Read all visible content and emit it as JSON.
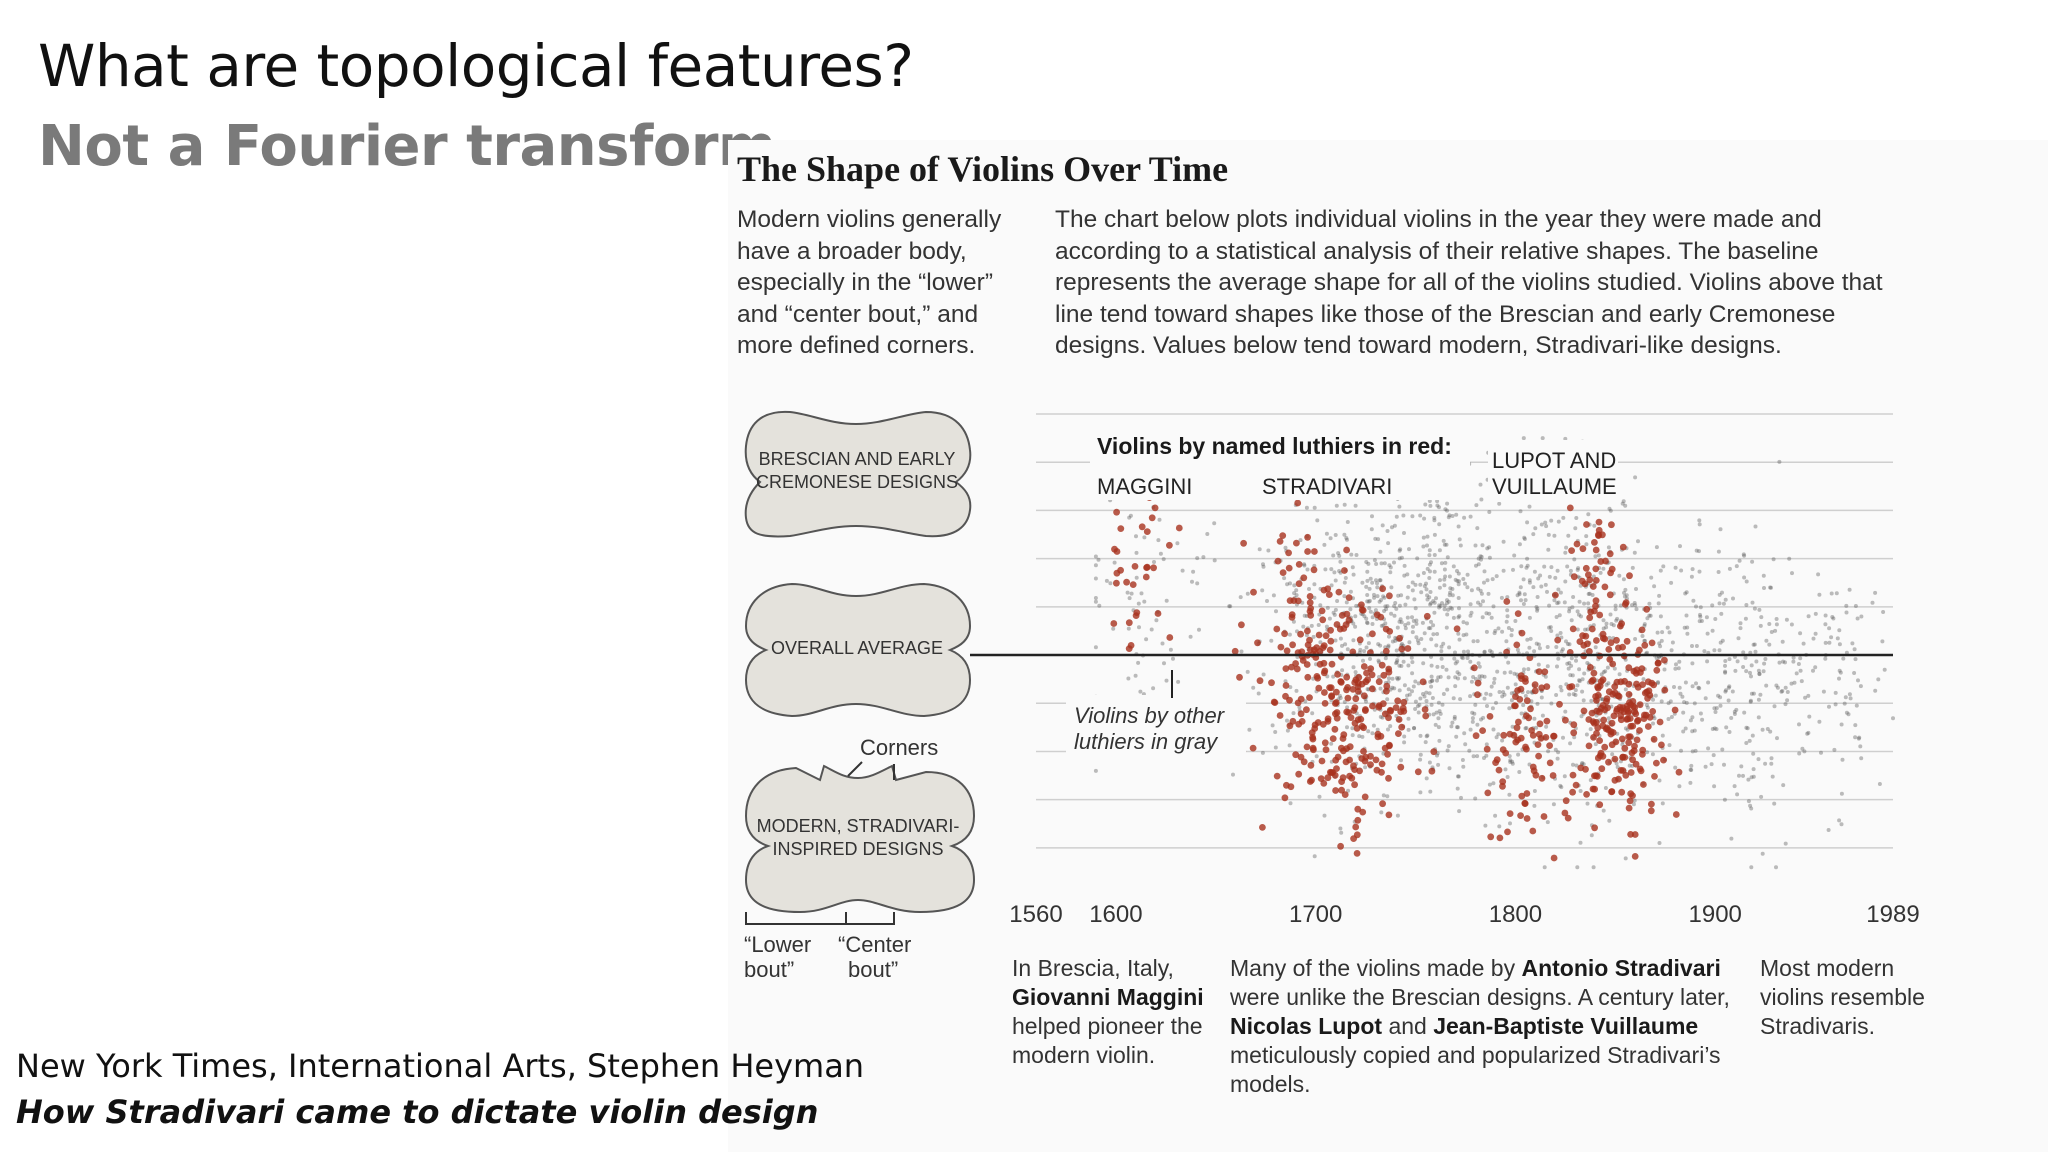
{
  "slide": {
    "title": "What are topological features?",
    "subtitle": "Not a Fourier transform"
  },
  "graphic": {
    "title": "The Shape of Violins Over Time",
    "desc_left": "Modern violins generally have a broader body, especially in the “lower” and “center bout,” and more defined corners.",
    "desc_right": "The chart below plots individual violins in the year they were made and according to a statistical analysis of their relative shapes. The baseline represents the average shape for all of the violins studied. Violins above that line tend toward shapes like those of the Brescian and early Cremonese designs. Values below tend toward modern, Stradivari-like designs.",
    "shapes": {
      "top_line1": "BRESCIAN AND EARLY",
      "top_line2": "CREMONESE DESIGNS",
      "middle": "OVERALL AVERAGE",
      "bottom_line1": "MODERN, STRADIVARI-",
      "bottom_line2": "INSPIRED DESIGNS",
      "corners": "Corners",
      "lower_bout_line1": "“Lower",
      "lower_bout_line2": "bout”",
      "center_bout_line1": "“Center",
      "center_bout_line2": "bout”"
    },
    "annotations": [
      {
        "parts": [
          {
            "t": "In Brescia, Italy, ",
            "b": false
          },
          {
            "t": "Giovanni Maggini",
            "b": true
          },
          {
            "t": " helped pioneer the modern violin.",
            "b": false
          }
        ]
      },
      {
        "parts": [
          {
            "t": "Many of the violins made by ",
            "b": false
          },
          {
            "t": "Antonio Stradivari",
            "b": true
          },
          {
            "t": " were unlike the Brescian designs. A century later, ",
            "b": false
          },
          {
            "t": "Nicolas Lupot",
            "b": true
          },
          {
            "t": " and ",
            "b": false
          },
          {
            "t": "Jean-Baptiste Vuillaume",
            "b": true
          },
          {
            "t": " meticulously copied and popularized Stradivari’s models.",
            "b": false
          }
        ]
      },
      {
        "parts": [
          {
            "t": "Most modern violins resemble Stradivaris.",
            "b": false
          }
        ]
      }
    ]
  },
  "chart_data": {
    "type": "scatter",
    "title": "",
    "xlabel": "",
    "ylabel": "",
    "x_ticks": [
      1560,
      1600,
      1700,
      1800,
      1900,
      1989
    ],
    "xlim": [
      1560,
      1989
    ],
    "ylim": [
      -4.5,
      5
    ],
    "grid": true,
    "baseline": 0,
    "legend_title": "Violins by named luthiers in red:",
    "group_labels": [
      "MAGGINI",
      "STRADIVARI",
      "LUPOT AND VUILLAUME"
    ],
    "gray_label": "Violins by other luthiers in gray",
    "colors": {
      "named": "#a8321e",
      "other": "#5a5a5a",
      "baseline": "#222222",
      "grid": "#cfcfcf"
    },
    "series": [
      {
        "name": "MAGGINI",
        "color": "#a8321e",
        "clusters": [
          {
            "x_center": 1610,
            "x_spread": 9,
            "y_center": 2.0,
            "y_spread": 1.3,
            "count": 34
          }
        ]
      },
      {
        "name": "STRADIVARI",
        "color": "#a8321e",
        "clusters": [
          {
            "x_center": 1712,
            "x_spread": 20,
            "y_center": -1.0,
            "y_spread": 1.2,
            "count": 260
          },
          {
            "x_center": 1690,
            "x_spread": 10,
            "y_center": 0.8,
            "y_spread": 0.9,
            "count": 35
          }
        ]
      },
      {
        "name": "LUPOT AND VUILLAUME",
        "color": "#a8321e",
        "clusters": [
          {
            "x_center": 1805,
            "x_spread": 14,
            "y_center": -1.6,
            "y_spread": 1.3,
            "count": 90
          },
          {
            "x_center": 1852,
            "x_spread": 12,
            "y_center": -1.3,
            "y_spread": 1.0,
            "count": 200
          },
          {
            "x_center": 1840,
            "x_spread": 10,
            "y_center": 1.4,
            "y_spread": 1.0,
            "count": 55
          }
        ]
      },
      {
        "name": "",
        "color": "#5a5a5a",
        "clusters": [
          {
            "x_center": 1620,
            "x_spread": 25,
            "y_center": 0.9,
            "y_spread": 1.4,
            "count": 90
          },
          {
            "x_center": 1750,
            "x_spread": 38,
            "y_center": 0.4,
            "y_spread": 1.8,
            "count": 900
          },
          {
            "x_center": 1840,
            "x_spread": 30,
            "y_center": 0.0,
            "y_spread": 1.6,
            "count": 450
          },
          {
            "x_center": 1915,
            "x_spread": 25,
            "y_center": -0.7,
            "y_spread": 1.4,
            "count": 260
          },
          {
            "x_center": 1960,
            "x_spread": 15,
            "y_center": -0.4,
            "y_spread": 1.0,
            "count": 60
          }
        ]
      }
    ]
  },
  "source": {
    "line1": "New York Times, International Arts, Stephen Heyman",
    "line2": "How Stradivari came to dictate violin design"
  }
}
